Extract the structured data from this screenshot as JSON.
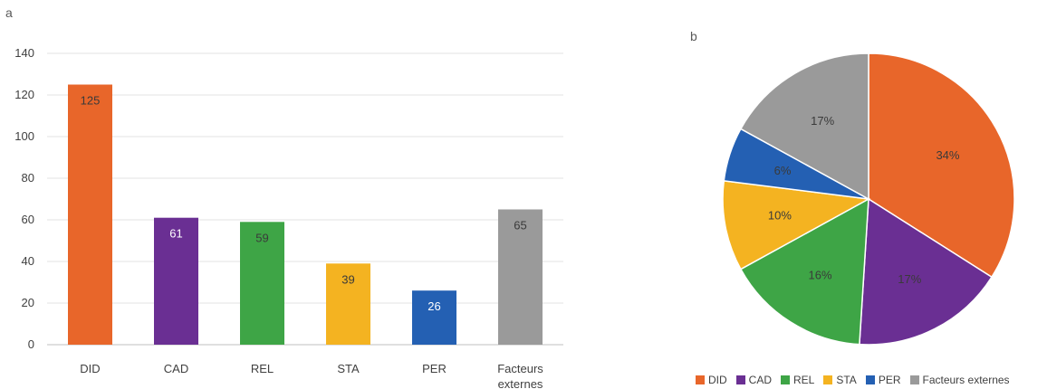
{
  "panels": {
    "a": "a",
    "b": "b"
  },
  "chart_data": [
    {
      "type": "bar",
      "categories": [
        "DID",
        "CAD",
        "REL",
        "STA",
        "PER",
        "Facteurs externes"
      ],
      "category_lines": [
        [
          "DID"
        ],
        [
          "CAD"
        ],
        [
          "REL"
        ],
        [
          "STA"
        ],
        [
          "PER"
        ],
        [
          "Facteurs",
          "externes"
        ]
      ],
      "values": [
        125,
        61,
        59,
        39,
        26,
        65
      ],
      "colors": [
        "#e8662a",
        "#6a2f93",
        "#3ea546",
        "#f4b321",
        "#2460b3",
        "#9a9a9a"
      ],
      "ylim": [
        0,
        140
      ],
      "yticks": [
        0,
        20,
        40,
        60,
        80,
        100,
        120,
        140
      ],
      "grid": true,
      "data_labels": [
        "125",
        "61",
        "59",
        "39",
        "26",
        "65"
      ]
    },
    {
      "type": "pie",
      "labels": [
        "DID",
        "CAD",
        "REL",
        "STA",
        "PER",
        "Facteurs externes"
      ],
      "values": [
        34,
        17,
        16,
        10,
        6,
        17
      ],
      "data_labels": [
        "34%",
        "17%",
        "16%",
        "10%",
        "6%",
        "17%"
      ],
      "colors": [
        "#e8662a",
        "#6a2f93",
        "#3ea546",
        "#f4b321",
        "#2460b3",
        "#9a9a9a"
      ],
      "legend_position": "bottom"
    }
  ]
}
